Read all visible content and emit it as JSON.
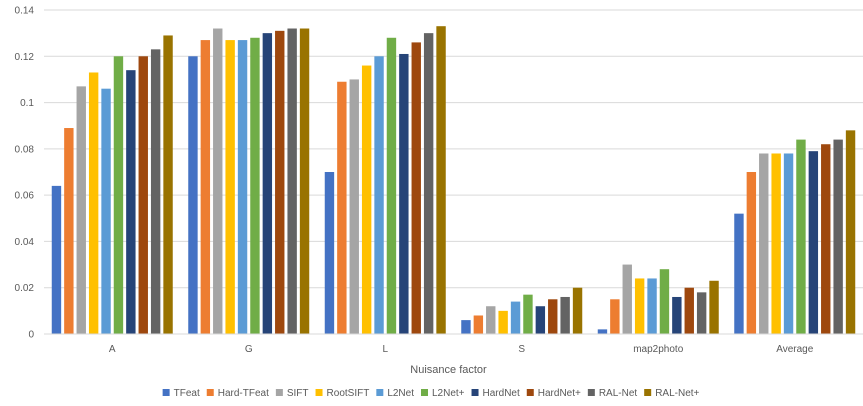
{
  "chart_data": {
    "type": "bar",
    "xlabel": "Nuisance factor",
    "ylabel": "",
    "ylim": [
      0,
      0.14
    ],
    "yticks": [
      "0",
      "0.02",
      "0.04",
      "0.06",
      "0.08",
      "0.1",
      "0.12",
      "0.14"
    ],
    "grid": true,
    "legend_position": "bottom",
    "categories": [
      "A",
      "G",
      "L",
      "S",
      "map2photo",
      "Average"
    ],
    "series": [
      {
        "name": "TFeat",
        "color": "#4472c4",
        "values": [
          0.064,
          0.12,
          0.07,
          0.006,
          0.002,
          0.052
        ]
      },
      {
        "name": "Hard-TFeat",
        "color": "#ed7d31",
        "values": [
          0.089,
          0.127,
          0.109,
          0.008,
          0.015,
          0.07
        ]
      },
      {
        "name": "SIFT",
        "color": "#a5a5a5",
        "values": [
          0.107,
          0.132,
          0.11,
          0.012,
          0.03,
          0.078
        ]
      },
      {
        "name": "RootSIFT",
        "color": "#ffc000",
        "values": [
          0.113,
          0.127,
          0.116,
          0.01,
          0.024,
          0.078
        ]
      },
      {
        "name": "L2Net",
        "color": "#5b9bd5",
        "values": [
          0.106,
          0.127,
          0.12,
          0.014,
          0.024,
          0.078
        ]
      },
      {
        "name": "L2Net+",
        "color": "#70ad47",
        "values": [
          0.12,
          0.128,
          0.128,
          0.017,
          0.028,
          0.084
        ]
      },
      {
        "name": "HardNet",
        "color": "#264478",
        "values": [
          0.114,
          0.13,
          0.121,
          0.012,
          0.016,
          0.079
        ]
      },
      {
        "name": "HardNet+",
        "color": "#9e480e",
        "values": [
          0.12,
          0.131,
          0.126,
          0.015,
          0.02,
          0.082
        ]
      },
      {
        "name": "RAL-Net",
        "color": "#636363",
        "values": [
          0.123,
          0.132,
          0.13,
          0.016,
          0.018,
          0.084
        ]
      },
      {
        "name": "RAL-Net+",
        "color": "#997300",
        "values": [
          0.129,
          0.132,
          0.133,
          0.02,
          0.023,
          0.088
        ]
      }
    ]
  }
}
